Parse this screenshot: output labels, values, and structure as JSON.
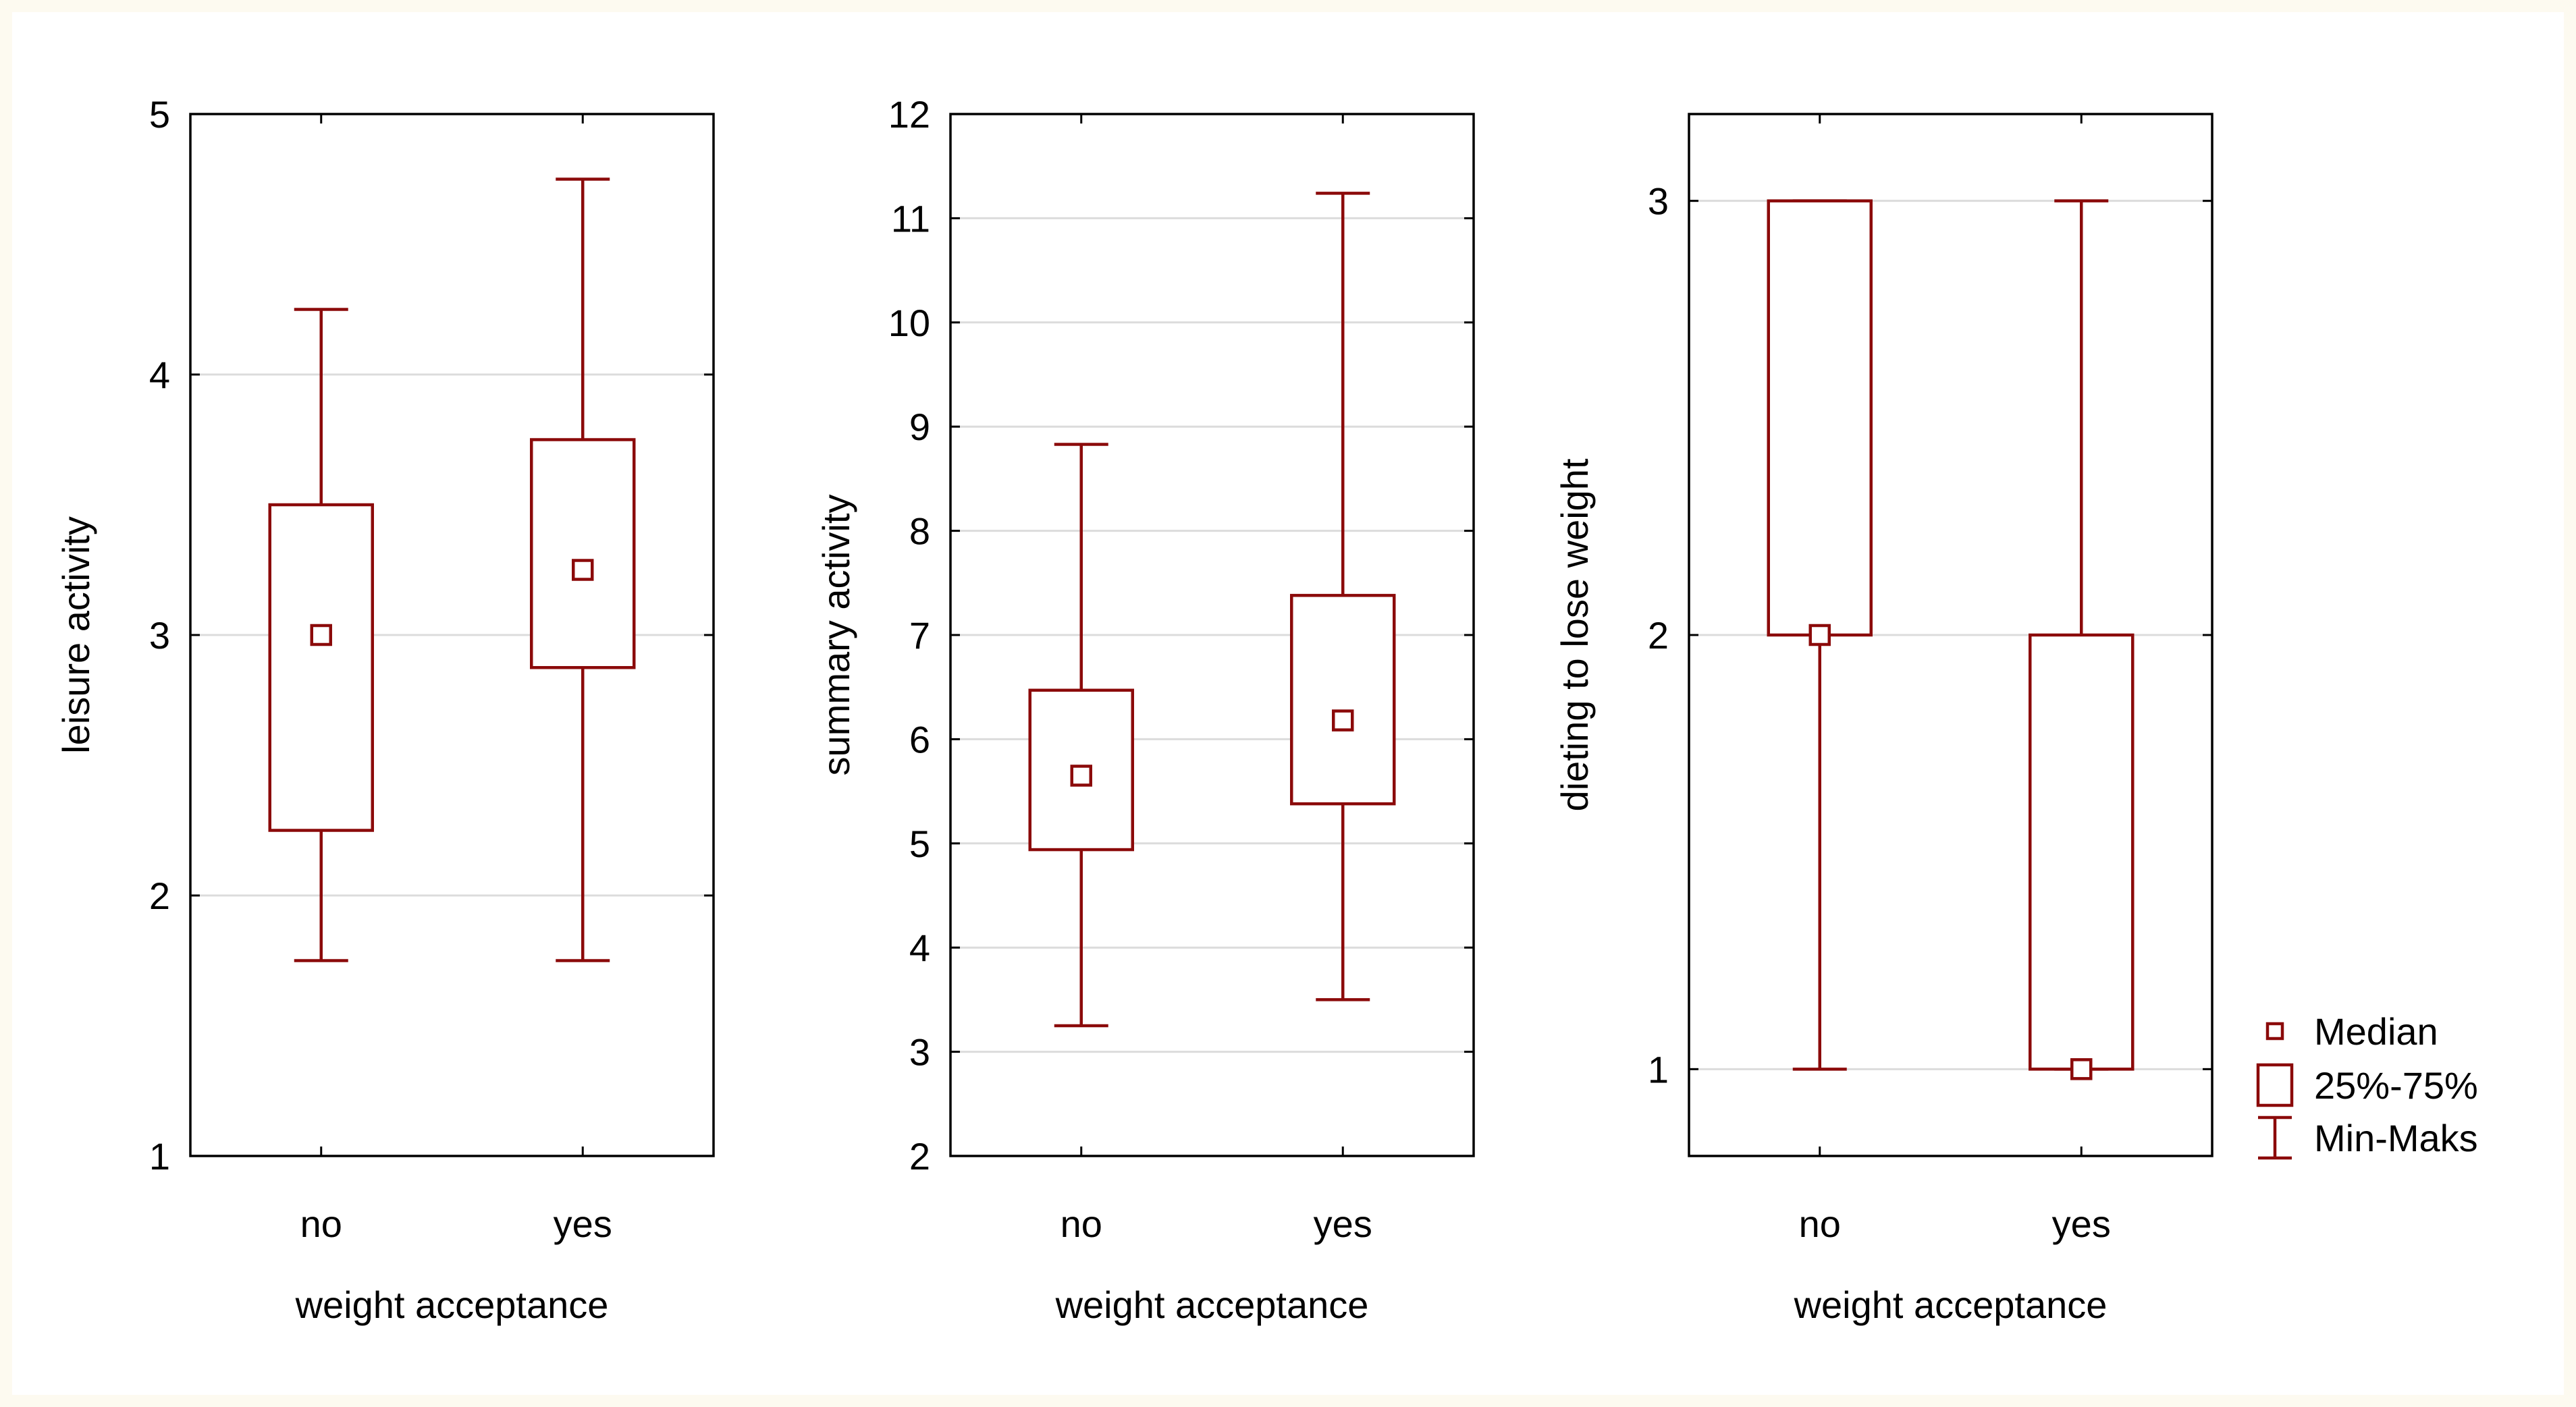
{
  "colors": {
    "box": "#8b0a0a",
    "grid": "#dcdcdc",
    "axis": "#000000",
    "page_background": "#fdfaf0"
  },
  "chart_data": [
    {
      "type": "box",
      "ylabel": "leisure activity",
      "xlabel": "weight acceptance",
      "categories": [
        "no",
        "yes"
      ],
      "ylim": [
        1,
        5
      ],
      "yticks": [
        "1",
        "2",
        "3",
        "4",
        "5"
      ],
      "boxes": [
        {
          "category": "no",
          "min": 1.75,
          "q1": 2.25,
          "median": 3.0,
          "q3": 3.5,
          "max": 4.25
        },
        {
          "category": "yes",
          "min": 1.75,
          "q1": 2.875,
          "median": 3.25,
          "q3": 3.75,
          "max": 4.75
        }
      ]
    },
    {
      "type": "box",
      "ylabel": "summary activity",
      "xlabel": "weight acceptance",
      "categories": [
        "no",
        "yes"
      ],
      "ylim": [
        2,
        12
      ],
      "yticks": [
        "2",
        "3",
        "4",
        "5",
        "6",
        "7",
        "8",
        "9",
        "10",
        "11",
        "12"
      ],
      "boxes": [
        {
          "category": "no",
          "min": 3.25,
          "q1": 4.94,
          "median": 5.65,
          "q3": 6.47,
          "max": 8.83
        },
        {
          "category": "yes",
          "min": 3.5,
          "q1": 5.38,
          "median": 6.18,
          "q3": 7.38,
          "max": 11.24
        }
      ]
    },
    {
      "type": "box",
      "ylabel": "dieting to lose weight",
      "xlabel": "weight acceptance",
      "categories": [
        "no",
        "yes"
      ],
      "ylim": [
        0.8,
        3.2
      ],
      "yticks": [
        "1",
        "2",
        "3"
      ],
      "boxes": [
        {
          "category": "no",
          "min": 1,
          "q1": 2,
          "median": 2,
          "q3": 3,
          "max": 3
        },
        {
          "category": "yes",
          "min": 1,
          "q1": 1,
          "median": 1,
          "q3": 2,
          "max": 3
        }
      ]
    }
  ],
  "legend": {
    "position": "right",
    "items": [
      {
        "symbol": "median",
        "label": "Median"
      },
      {
        "symbol": "box",
        "label": "25%-75%"
      },
      {
        "symbol": "whisker",
        "label": "Min-Maks"
      }
    ]
  }
}
